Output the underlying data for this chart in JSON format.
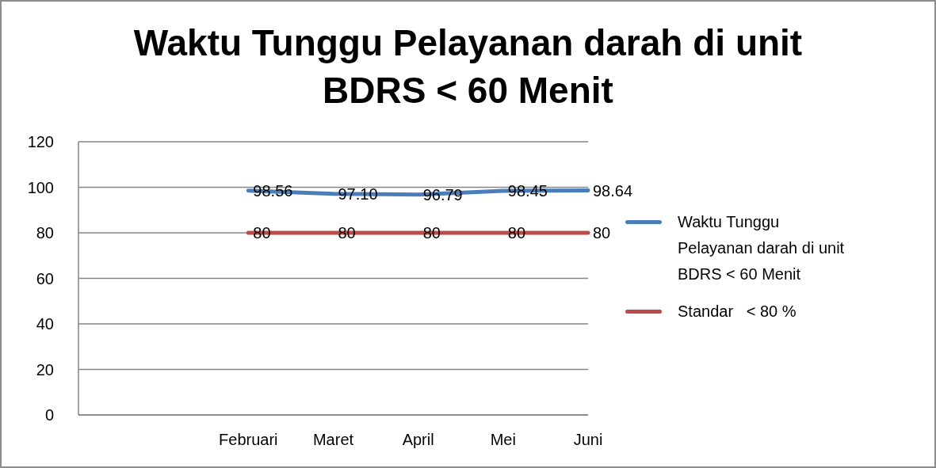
{
  "chart_data": {
    "type": "line",
    "title": "Waktu Tunggu Pelayanan darah di unit BDRS < 60 Menit",
    "categories": [
      null,
      null,
      "Februari",
      "Maret",
      "April",
      "Mei",
      "Juni"
    ],
    "series": [
      {
        "name": "Waktu Tunggu Pelayanan darah di unit BDRS < 60 Menit",
        "color": "#4a7ebb",
        "values": [
          null,
          null,
          98.56,
          97.1,
          96.79,
          98.45,
          98.64
        ],
        "value_labels": [
          null,
          null,
          "98.56",
          "97.10",
          "96.79",
          "98.45",
          "98.64"
        ]
      },
      {
        "name": "Standar   < 80 %",
        "color": "#be4b48",
        "values": [
          null,
          null,
          80,
          80,
          80,
          80,
          80
        ],
        "value_labels": [
          null,
          null,
          "80",
          "80",
          "80",
          "80",
          "80"
        ]
      }
    ],
    "ylim": [
      0,
      120
    ],
    "yticks": [
      0,
      20,
      40,
      60,
      80,
      100,
      120
    ],
    "grid": "y",
    "legend": "right",
    "marker": "none",
    "line_style": "solid"
  }
}
